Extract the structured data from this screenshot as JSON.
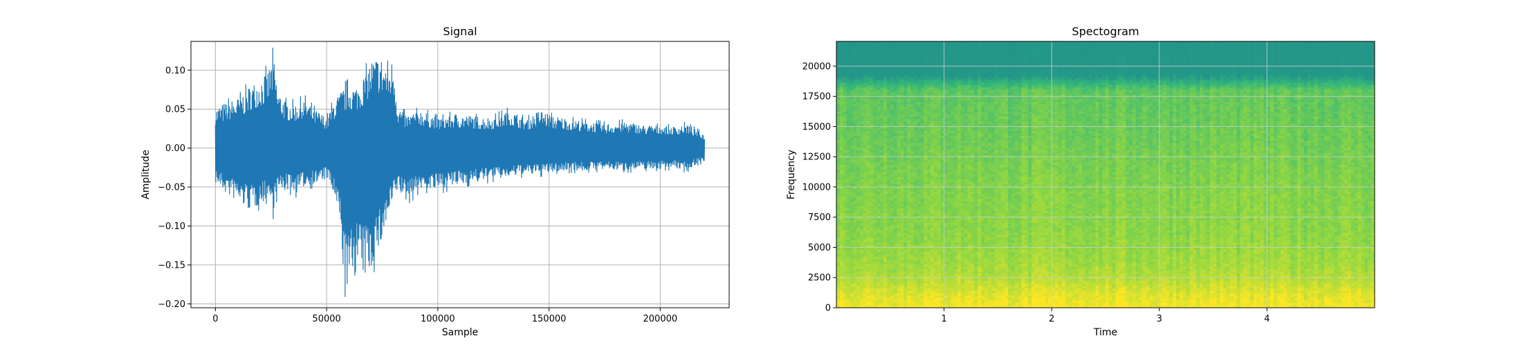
{
  "chart_data": [
    {
      "type": "line",
      "title": "Signal",
      "xlabel": "Sample",
      "ylabel": "Amplitude",
      "xlim": [
        -11000,
        231000
      ],
      "ylim": [
        -0.205,
        0.137
      ],
      "x_ticks": [
        0,
        50000,
        100000,
        150000,
        200000
      ],
      "x_tick_labels": [
        "0",
        "50000",
        "100000",
        "150000",
        "200000"
      ],
      "y_ticks": [
        -0.2,
        -0.15,
        -0.1,
        -0.05,
        0.0,
        0.05,
        0.1
      ],
      "y_tick_labels": [
        "−0.20",
        "−0.15",
        "−0.10",
        "−0.05",
        "0.00",
        "0.05",
        "0.10"
      ],
      "grid": true,
      "color": "#1f77b4",
      "series": [
        {
          "values": {
            "samples": [
              0,
              5000,
              10000,
              15000,
              20000,
              24000,
              26000,
              28000,
              32000,
              36000,
              40000,
              45000,
              50000,
              53000,
              56000,
              58000,
              60000,
              63000,
              66000,
              70000,
              74000,
              78000,
              80000,
              82000,
              86000,
              92000,
              100000,
              108000,
              116000,
              124000,
              132000,
              140000,
              146000,
              152000,
              160000,
              168000,
              176000,
              184000,
              192000,
              200000,
              206000,
              212000,
              216000,
              220000
            ],
            "upper": [
              0.052,
              0.06,
              0.065,
              0.08,
              0.09,
              0.102,
              0.122,
              0.075,
              0.06,
              0.058,
              0.065,
              0.05,
              0.04,
              0.06,
              0.072,
              0.08,
              0.085,
              0.08,
              0.09,
              0.115,
              0.12,
              0.105,
              0.118,
              0.055,
              0.043,
              0.05,
              0.04,
              0.045,
              0.042,
              0.04,
              0.05,
              0.038,
              0.05,
              0.042,
              0.038,
              0.035,
              0.032,
              0.035,
              0.03,
              0.03,
              0.028,
              0.032,
              0.025,
              0.018
            ],
            "lower": [
              -0.045,
              -0.06,
              -0.07,
              -0.08,
              -0.075,
              -0.065,
              -0.085,
              -0.06,
              -0.055,
              -0.06,
              -0.05,
              -0.048,
              -0.04,
              -0.06,
              -0.1,
              -0.18,
              -0.188,
              -0.15,
              -0.17,
              -0.16,
              -0.13,
              -0.09,
              -0.07,
              -0.055,
              -0.07,
              -0.055,
              -0.055,
              -0.05,
              -0.045,
              -0.042,
              -0.038,
              -0.035,
              -0.035,
              -0.032,
              -0.03,
              -0.03,
              -0.028,
              -0.03,
              -0.028,
              -0.028,
              -0.026,
              -0.03,
              -0.022,
              -0.018
            ]
          }
        }
      ]
    },
    {
      "type": "heatmap",
      "title": "Spectogram",
      "xlabel": "Time",
      "ylabel": "Frequency",
      "xlim": [
        0.0,
        5.0
      ],
      "ylim": [
        0,
        22050
      ],
      "x_ticks": [
        1,
        2,
        3,
        4
      ],
      "x_tick_labels": [
        "1",
        "2",
        "3",
        "4"
      ],
      "y_ticks": [
        0,
        2500,
        5000,
        7500,
        10000,
        12500,
        15000,
        17500,
        20000
      ],
      "y_tick_labels": [
        "0",
        "2500",
        "5000",
        "7500",
        "10000",
        "12500",
        "15000",
        "17500",
        "20000"
      ],
      "grid": true,
      "colormap": "viridis",
      "colormap_stops": [
        "#21918c",
        "#35b779",
        "#90d743",
        "#fde725"
      ],
      "frequency_band_intensity": {
        "frequencies": [
          0,
          1000,
          2500,
          3800,
          6000,
          10000,
          14000,
          18000,
          18600,
          19200,
          22050
        ],
        "intensity": [
          0.98,
          0.92,
          0.78,
          0.72,
          0.66,
          0.62,
          0.55,
          0.5,
          0.3,
          0.06,
          0.05
        ]
      }
    }
  ]
}
